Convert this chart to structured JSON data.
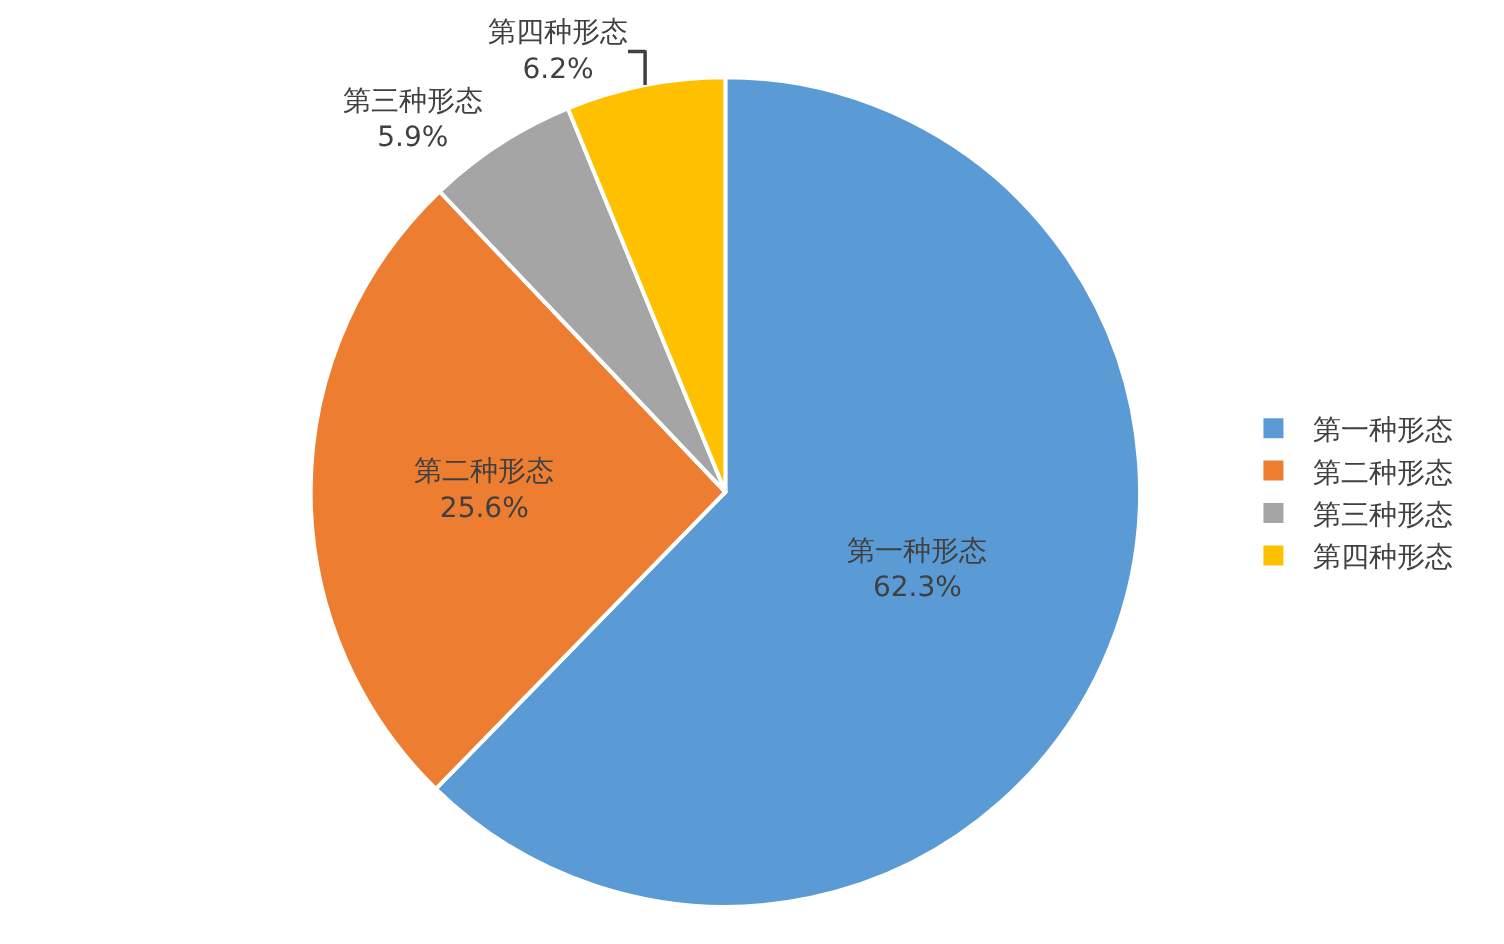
{
  "chart_data": {
    "type": "pie",
    "categories": [
      "第一种形态",
      "第二种形态",
      "第三种形态",
      "第四种形态"
    ],
    "values": [
      62.3,
      25.6,
      5.9,
      6.2
    ],
    "value_labels": [
      "62.3%",
      "25.6%",
      "5.9%",
      "6.2%"
    ],
    "colors": [
      "#5b9bd5",
      "#ed7d31",
      "#a5a5a5",
      "#ffc000"
    ],
    "legend": "right"
  }
}
